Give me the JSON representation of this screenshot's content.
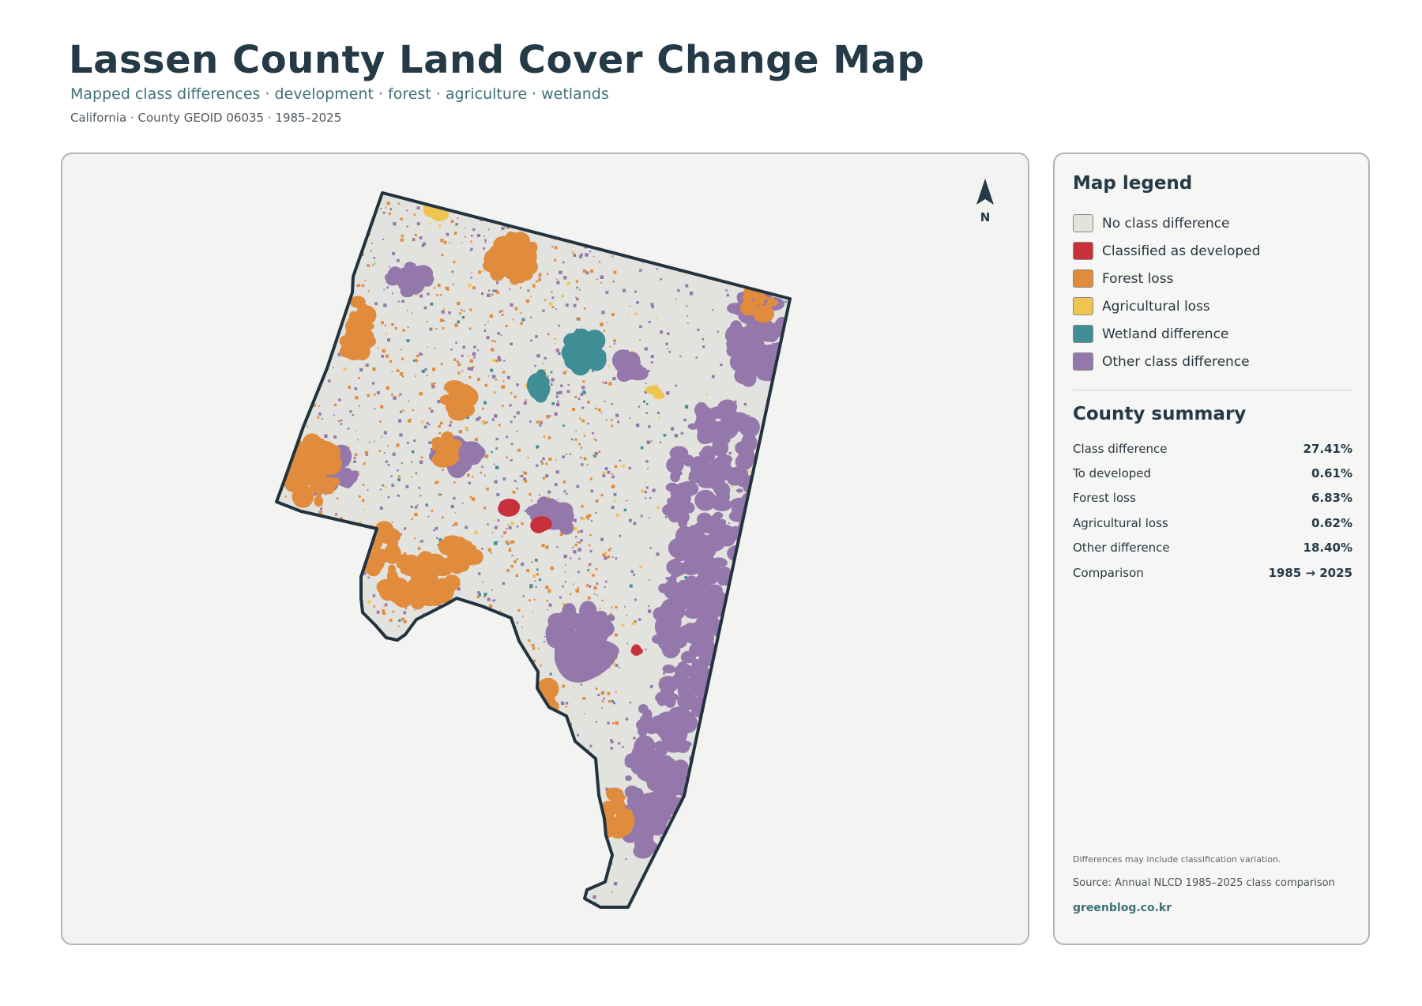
{
  "header": {
    "title": "Lassen County Land Cover Change Map",
    "subtitle": "Mapped class differences · development · forest · agriculture · wetlands",
    "meta": "California · County GEOID 06035 · 1985–2025"
  },
  "map": {
    "north_label": "N",
    "colors": {
      "no_difference": "#e2e2de",
      "developed": "#c8303c",
      "forest_loss": "#e08c3c",
      "agricultural_loss": "#efc450",
      "wetland": "#3f8e96",
      "other": "#9478ab",
      "boundary": "#22333f"
    }
  },
  "legend": {
    "title": "Map legend",
    "items": [
      {
        "label": "No class difference",
        "color": "#e2e2de"
      },
      {
        "label": "Classified as developed",
        "color": "#c8303c"
      },
      {
        "label": "Forest loss",
        "color": "#e08c3c"
      },
      {
        "label": "Agricultural loss",
        "color": "#efc450"
      },
      {
        "label": "Wetland difference",
        "color": "#3f8e96"
      },
      {
        "label": "Other class difference",
        "color": "#9478ab"
      }
    ]
  },
  "summary": {
    "title": "County summary",
    "rows": [
      {
        "label": "Class difference",
        "value": "27.41%"
      },
      {
        "label": "To developed",
        "value": "0.61%"
      },
      {
        "label": "Forest loss",
        "value": "6.83%"
      },
      {
        "label": "Agricultural loss",
        "value": "0.62%"
      },
      {
        "label": "Other difference",
        "value": "18.40%"
      },
      {
        "label": "Comparison",
        "value": "1985 → 2025"
      }
    ]
  },
  "footer": {
    "note": "Differences may include classification variation.",
    "source": "Source: Annual NLCD 1985–2025 class comparison",
    "credit": "greenblog.co.kr"
  }
}
